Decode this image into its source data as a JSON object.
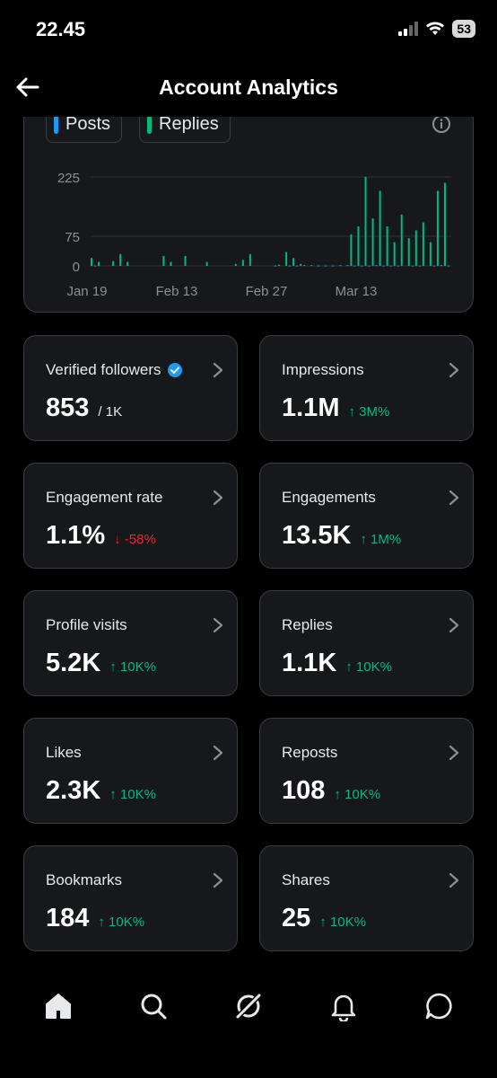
{
  "status": {
    "time": "22.45",
    "battery": "53"
  },
  "header": {
    "title": "Account Analytics"
  },
  "chart": {
    "legend": [
      {
        "label": "Posts",
        "color": "#1d9bf0"
      },
      {
        "label": "Replies",
        "color": "#00ba7c"
      }
    ]
  },
  "chart_data": {
    "type": "bar",
    "yticks": [
      "225",
      "75",
      "0"
    ],
    "xticks": [
      "Jan 19",
      "Feb 13",
      "Feb 27",
      "Mar 13"
    ],
    "ylim": [
      0,
      225
    ],
    "series": [
      {
        "name": "Posts",
        "color": "#1d9bf0",
        "values": [
          1,
          0,
          0,
          0,
          0,
          0,
          0,
          0,
          0,
          0,
          0,
          0,
          0,
          0,
          0,
          0,
          0,
          0,
          0,
          0,
          0,
          0,
          0,
          0,
          0,
          0,
          0,
          0,
          0,
          0,
          0,
          0,
          0,
          0,
          0,
          0,
          0,
          0,
          0,
          0,
          0,
          0,
          0,
          0,
          0,
          0,
          0,
          0,
          0,
          0,
          1,
          0,
          0,
          0,
          1,
          0,
          1,
          0,
          2,
          0,
          2,
          0,
          1,
          0,
          1,
          0,
          1,
          0,
          2,
          0,
          2,
          0,
          1,
          0,
          1,
          0,
          1,
          0,
          2,
          0,
          1,
          0,
          1,
          0,
          1,
          0,
          0,
          0,
          1,
          0,
          1,
          0,
          0,
          0,
          1,
          0,
          2,
          0,
          1,
          0
        ]
      },
      {
        "name": "Replies",
        "color": "#00ba7c",
        "values": [
          20,
          0,
          10,
          0,
          0,
          0,
          12,
          0,
          30,
          0,
          10,
          0,
          0,
          0,
          0,
          0,
          0,
          0,
          0,
          0,
          25,
          0,
          10,
          0,
          0,
          0,
          25,
          0,
          0,
          0,
          0,
          0,
          10,
          0,
          0,
          0,
          0,
          0,
          0,
          0,
          5,
          0,
          15,
          0,
          30,
          0,
          0,
          0,
          0,
          0,
          0,
          0,
          3,
          0,
          35,
          0,
          20,
          0,
          5,
          0,
          0,
          0,
          0,
          0,
          0,
          0,
          0,
          0,
          0,
          0,
          0,
          0,
          80,
          0,
          100,
          0,
          225,
          0,
          120,
          0,
          190,
          0,
          100,
          0,
          60,
          0,
          130,
          0,
          70,
          0,
          90,
          0,
          110,
          0,
          60,
          0,
          190,
          0,
          210,
          0
        ]
      }
    ],
    "note": ""
  },
  "stats": [
    {
      "label": "Verified followers",
      "value": "853",
      "sub": "/ 1K",
      "change": "",
      "verified": true
    },
    {
      "label": "Impressions",
      "value": "1.1M",
      "sub": "",
      "change": "↑ 3M%",
      "dir": "up"
    },
    {
      "label": "Engagement rate",
      "value": "1.1%",
      "sub": "",
      "change": "↓ -58%",
      "dir": "down"
    },
    {
      "label": "Engagements",
      "value": "13.5K",
      "sub": "",
      "change": "↑ 1M%",
      "dir": "up"
    },
    {
      "label": "Profile visits",
      "value": "5.2K",
      "sub": "",
      "change": "↑ 10K%",
      "dir": "up"
    },
    {
      "label": "Replies",
      "value": "1.1K",
      "sub": "",
      "change": "↑ 10K%",
      "dir": "up"
    },
    {
      "label": "Likes",
      "value": "2.3K",
      "sub": "",
      "change": "↑ 10K%",
      "dir": "up"
    },
    {
      "label": "Reposts",
      "value": "108",
      "sub": "",
      "change": "↑ 10K%",
      "dir": "up"
    },
    {
      "label": "Bookmarks",
      "value": "184",
      "sub": "",
      "change": "↑ 10K%",
      "dir": "up"
    },
    {
      "label": "Shares",
      "value": "25",
      "sub": "",
      "change": "↑ 10K%",
      "dir": "up"
    }
  ],
  "nav": [
    {
      "icon": "home-icon"
    },
    {
      "icon": "search-icon"
    },
    {
      "icon": "grok-icon"
    },
    {
      "icon": "bell-icon"
    },
    {
      "icon": "messages-icon"
    }
  ]
}
